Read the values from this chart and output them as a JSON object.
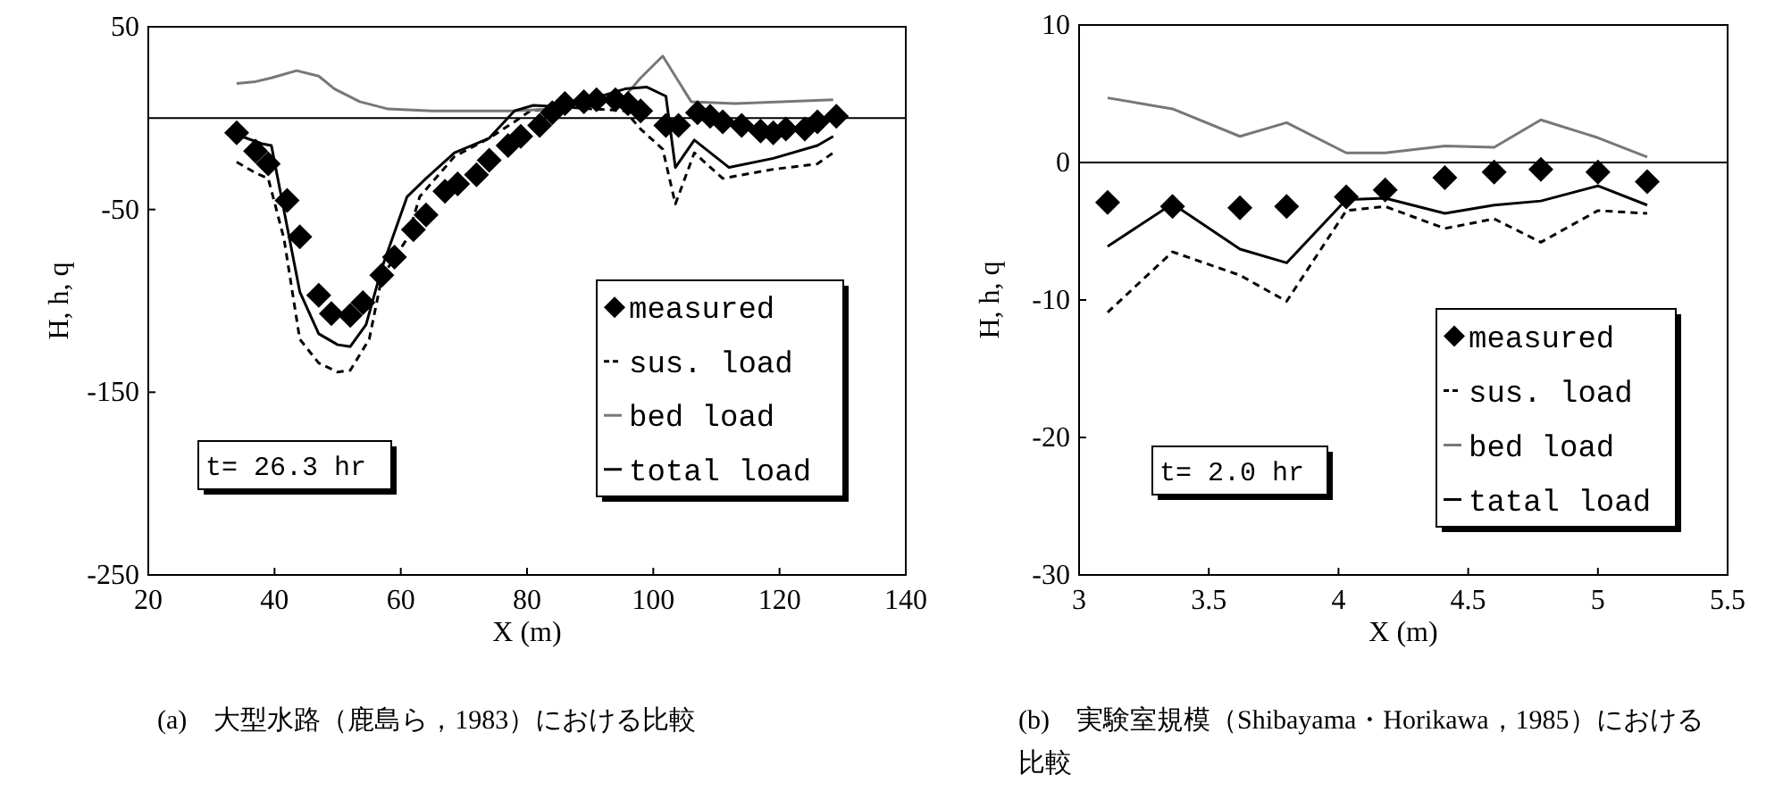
{
  "chart_data": [
    {
      "type": "line",
      "xlabel": "X (m)",
      "ylabel": "H, h, q",
      "xlim": [
        20,
        140
      ],
      "ylim": [
        -250,
        50
      ],
      "xticks": [
        20,
        40,
        60,
        80,
        100,
        120,
        140
      ],
      "yticks": [
        -250,
        -150,
        -50,
        50
      ],
      "legend": "bottom right",
      "ref_lines": [
        {
          "axis": "y",
          "value": 0
        }
      ],
      "annotations": [
        "t= 26.3 hr",
        "(a)　大型水路（鹿島ら，1983）における比較"
      ],
      "series": [
        {
          "name": "measured",
          "type": "scatter",
          "marker": "diamond",
          "color": "#000000",
          "x": [
            34,
            37,
            39,
            42,
            44,
            47,
            49,
            52,
            54,
            57,
            59,
            62,
            64,
            67,
            69,
            72,
            74,
            77,
            79,
            82,
            84,
            86,
            89,
            91,
            94,
            96,
            98,
            102,
            104,
            107,
            109,
            111,
            114,
            117,
            119,
            121,
            124,
            126,
            129
          ],
          "values": [
            -8,
            -18,
            -25,
            -45,
            -65,
            -97,
            -107,
            -108,
            -101,
            -86,
            -76,
            -61,
            -53,
            -40,
            -36,
            -31,
            -23,
            -15,
            -10,
            -4,
            3,
            8,
            9,
            10,
            10,
            8,
            4,
            -4,
            -4,
            3,
            1,
            -2,
            -4,
            -7,
            -8,
            -6,
            -6,
            -2,
            1
          ]
        },
        {
          "name": "sus. load",
          "type": "line",
          "line_style": "dashed",
          "color": "#000000",
          "x": [
            34,
            37,
            39,
            41.5,
            44,
            47,
            50,
            52,
            55,
            57,
            61,
            63,
            68.5,
            74,
            78,
            80.5,
            86,
            95.5,
            98,
            101.5,
            103.5,
            106.5,
            111,
            119,
            126,
            128.5
          ],
          "values": [
            -24,
            -30,
            -33,
            -66,
            -121,
            -134,
            -139,
            -138,
            -121,
            -87,
            -66,
            -43,
            -21,
            -11,
            -2,
            4,
            6,
            4,
            -6,
            -17,
            -47,
            -19,
            -33,
            -28,
            -25,
            -19
          ]
        },
        {
          "name": "bed load",
          "type": "line",
          "line_style": "solid",
          "color": "#777777",
          "x": [
            34,
            37,
            39.5,
            43.5,
            47,
            49.5,
            53.5,
            58,
            65,
            78,
            84,
            90,
            95.5,
            98,
            101.5,
            106,
            113,
            128.5
          ],
          "values": [
            19,
            20,
            22,
            26,
            23,
            16,
            9,
            5,
            4,
            4,
            5,
            9,
            12,
            22,
            34,
            9,
            8,
            10
          ]
        },
        {
          "name": "total load",
          "type": "line",
          "line_style": "solid",
          "color": "#000000",
          "x": [
            34,
            38,
            39.5,
            44,
            47,
            50,
            52,
            54.5,
            57,
            61,
            64,
            68.5,
            74,
            78,
            81,
            86,
            95.5,
            99,
            102,
            103.5,
            106.5,
            112,
            119,
            126,
            128.5
          ],
          "values": [
            -9,
            -14,
            -15,
            -95,
            -118,
            -124,
            -125,
            -113,
            -82,
            -43,
            -33,
            -19,
            -11,
            4,
            7,
            6,
            16,
            17,
            12,
            -27,
            -12,
            -27,
            -22,
            -15,
            -10
          ]
        }
      ]
    },
    {
      "type": "line",
      "xlabel": "X (m)",
      "ylabel": "H, h, q",
      "xlim": [
        3,
        5.5
      ],
      "ylim": [
        -30,
        10
      ],
      "xticks": [
        3,
        3.5,
        4,
        4.5,
        5,
        5.5
      ],
      "yticks": [
        -30,
        -20,
        -10,
        0,
        10
      ],
      "legend": "bottom right",
      "ref_lines": [
        {
          "axis": "y",
          "value": 0
        }
      ],
      "annotations": [
        "t= 2.0 hr",
        "(b)　実験室規模（Shibayama・Horikawa，1985）における比較"
      ],
      "series": [
        {
          "name": "measured",
          "type": "scatter",
          "marker": "diamond",
          "color": "#000000",
          "x": [
            3.11,
            3.36,
            3.62,
            3.8,
            4.03,
            4.18,
            4.41,
            4.6,
            4.78,
            5.0,
            5.19
          ],
          "values": [
            -2.9,
            -3.2,
            -3.3,
            -3.2,
            -2.5,
            -2.0,
            -1.1,
            -0.7,
            -0.5,
            -0.7,
            -1.4
          ]
        },
        {
          "name": "sus. load",
          "type": "line",
          "line_style": "dashed",
          "color": "#000000",
          "x": [
            3.11,
            3.36,
            3.62,
            3.8,
            4.03,
            4.18,
            4.41,
            4.6,
            4.78,
            5.0,
            5.19
          ],
          "values": [
            -10.9,
            -6.5,
            -8.2,
            -10.1,
            -3.5,
            -3.2,
            -4.8,
            -4.1,
            -5.8,
            -3.5,
            -3.7
          ]
        },
        {
          "name": "bed load",
          "type": "line",
          "line_style": "solid",
          "color": "#777777",
          "x": [
            3.11,
            3.36,
            3.62,
            3.8,
            4.03,
            4.18,
            4.41,
            4.6,
            4.78,
            5.0,
            5.19
          ],
          "values": [
            4.7,
            3.9,
            1.9,
            2.9,
            0.7,
            0.7,
            1.2,
            1.1,
            3.1,
            1.8,
            0.4
          ]
        },
        {
          "name": "tatal load",
          "type": "line",
          "line_style": "solid",
          "color": "#000000",
          "x": [
            3.11,
            3.36,
            3.62,
            3.8,
            4.03,
            4.18,
            4.41,
            4.6,
            4.78,
            5.0,
            5.19
          ],
          "values": [
            -6.1,
            -3.0,
            -6.3,
            -7.3,
            -2.7,
            -2.6,
            -3.7,
            -3.1,
            -2.8,
            -1.7,
            -3.1
          ]
        }
      ]
    }
  ]
}
